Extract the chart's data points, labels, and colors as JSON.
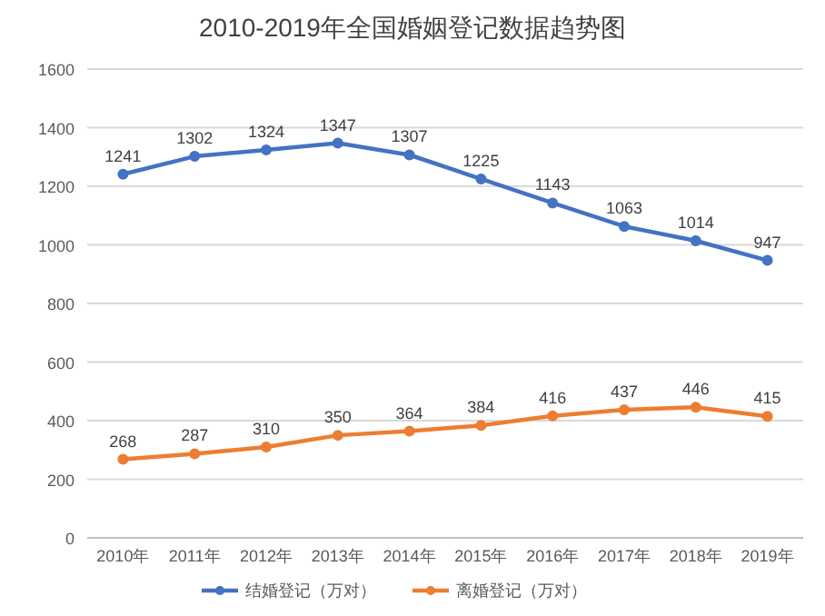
{
  "chart_data": {
    "type": "line",
    "title": "2010-2019年全国婚姻登记数据趋势图",
    "categories": [
      "2010年",
      "2011年",
      "2012年",
      "2013年",
      "2014年",
      "2015年",
      "2016年",
      "2017年",
      "2018年",
      "2019年"
    ],
    "series": [
      {
        "name": "结婚登记（万对）",
        "color": "#4472c4",
        "values": [
          1241,
          1302,
          1324,
          1347,
          1307,
          1225,
          1143,
          1063,
          1014,
          947
        ]
      },
      {
        "name": "离婚登记（万对）",
        "color": "#ed7d31",
        "values": [
          268,
          287,
          310,
          350,
          364,
          384,
          416,
          437,
          446,
          415
        ]
      }
    ],
    "ylim": [
      0,
      1600
    ],
    "yticks": [
      0,
      200,
      400,
      600,
      800,
      1000,
      1200,
      1400,
      1600
    ],
    "grid": "y",
    "legend": "bottom",
    "marker": "circle",
    "data_labels": true
  }
}
